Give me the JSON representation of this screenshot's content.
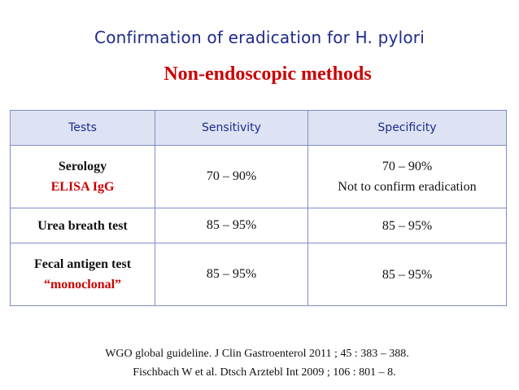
{
  "title": "Confirmation of eradication for H. pylori",
  "subtitle": "Non-endoscopic methods",
  "table": {
    "headers": [
      "Tests",
      "Sensitivity",
      "Specificity"
    ],
    "rows": [
      {
        "test_line1": "Serology",
        "test_line2": "ELISA IgG",
        "sensitivity": "70 – 90%",
        "specificity_line1": "70 – 90%",
        "specificity_line2": "Not to confirm eradication"
      },
      {
        "test_line1": "Urea breath test",
        "test_line2": "",
        "sensitivity": "85 – 95%",
        "specificity_line1": "85 – 95%",
        "specificity_line2": ""
      },
      {
        "test_line1": "Fecal antigen test",
        "test_line2": "“monoclonal”",
        "sensitivity": "85 – 95%",
        "specificity_line1": "85 – 95%",
        "specificity_line2": ""
      }
    ]
  },
  "references": [
    "WGO global guideline. J Clin Gastroenterol  2011 ; 45 : 383 – 388.",
    "Fischbach W et al. Dtsch Arztebl Int 2009 ; 106 : 801 – 8."
  ],
  "colors": {
    "title": "#1f2a8a",
    "subtitle": "#cc0000",
    "header_bg": "#dde3f3",
    "border": "#7f8ec8"
  }
}
